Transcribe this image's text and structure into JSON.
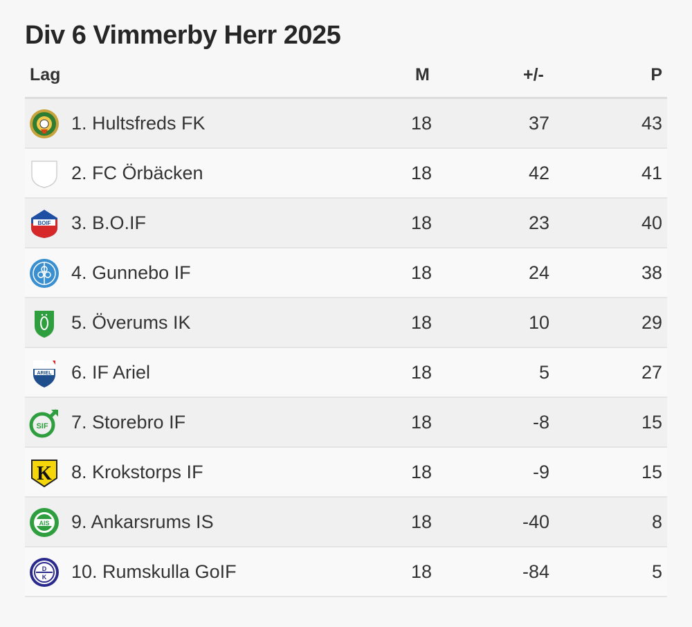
{
  "title": "Div 6 Vimmerby Herr 2025",
  "columns": {
    "team": "Lag",
    "matches": "M",
    "diff": "+/-",
    "points": "P"
  },
  "rows": [
    {
      "team": "1. Hultsfreds FK",
      "matches": "18",
      "diff": "37",
      "points": "43",
      "logo_icon": "hultsfreds-fk-crest-icon"
    },
    {
      "team": "2. FC Örbäcken",
      "matches": "18",
      "diff": "42",
      "points": "41",
      "logo_icon": "blank-shield-icon"
    },
    {
      "team": "3. B.O.IF",
      "matches": "18",
      "diff": "23",
      "points": "40",
      "logo_icon": "boif-crest-icon"
    },
    {
      "team": "4. Gunnebo IF",
      "matches": "18",
      "diff": "24",
      "points": "38",
      "logo_icon": "gunnebo-if-crest-icon"
    },
    {
      "team": "5. Överums IK",
      "matches": "18",
      "diff": "10",
      "points": "29",
      "logo_icon": "overums-ik-crest-icon"
    },
    {
      "team": "6. IF Ariel",
      "matches": "18",
      "diff": "5",
      "points": "27",
      "logo_icon": "if-ariel-crest-icon"
    },
    {
      "team": "7. Storebro IF",
      "matches": "18",
      "diff": "-8",
      "points": "15",
      "logo_icon": "storebro-if-crest-icon"
    },
    {
      "team": "8. Krokstorps IF",
      "matches": "18",
      "diff": "-9",
      "points": "15",
      "logo_icon": "krokstorps-if-crest-icon"
    },
    {
      "team": "9. Ankarsrums IS",
      "matches": "18",
      "diff": "-40",
      "points": "8",
      "logo_icon": "ankarsrums-is-crest-icon"
    },
    {
      "team": "10. Rumskulla GoIF",
      "matches": "18",
      "diff": "-84",
      "points": "5",
      "logo_icon": "rumskulla-goif-crest-icon"
    }
  ]
}
